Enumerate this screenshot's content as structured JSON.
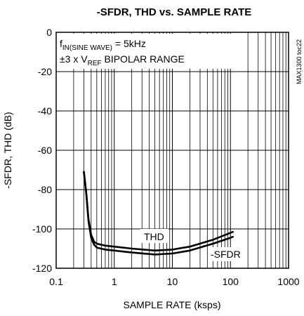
{
  "chart_data": {
    "type": "line",
    "title": "-SFDR, THD vs. SAMPLE RATE",
    "xlabel": "SAMPLE RATE (ksps)",
    "ylabel": "-SFDR, THD (dB)",
    "x_scale": "log",
    "xlim": [
      0.1,
      1000
    ],
    "ylim": [
      -120,
      0
    ],
    "x_ticks": [
      0.1,
      1,
      10,
      100,
      1000
    ],
    "x_tick_labels": [
      "0.1",
      "1",
      "10",
      "100",
      "1000"
    ],
    "y_ticks": [
      0,
      -20,
      -40,
      -60,
      -80,
      -100,
      -120
    ],
    "y_tick_labels": [
      "0",
      "-20",
      "-40",
      "-60",
      "-80",
      "-100",
      "-120"
    ],
    "grid": true,
    "annotation_lines": [
      {
        "main": "f",
        "subscript": "IN(SINE WAVE)",
        "rest": " = 5kHz"
      },
      {
        "main": "±3 x V",
        "subscript": "REF",
        "rest": " BIPOLAR RANGE"
      }
    ],
    "side_label": "MAX1300 toc22",
    "series": [
      {
        "name": "THD",
        "x": [
          0.3,
          0.33,
          0.36,
          0.4,
          0.45,
          0.5,
          0.7,
          1,
          2,
          5,
          10,
          20,
          50,
          100,
          110
        ],
        "y": [
          -71,
          -82,
          -95,
          -103,
          -106.5,
          -107.5,
          -108.5,
          -109,
          -110,
          -111,
          -110.5,
          -109,
          -105.5,
          -102,
          -101.5
        ]
      },
      {
        "name": "-SFDR",
        "x": [
          0.3,
          0.33,
          0.36,
          0.4,
          0.45,
          0.5,
          0.7,
          1,
          2,
          5,
          10,
          20,
          50,
          100,
          110
        ],
        "y": [
          -71,
          -82,
          -96,
          -104.5,
          -108,
          -109.5,
          -110.5,
          -111,
          -112,
          -113,
          -112.5,
          -111,
          -107.5,
          -104.5,
          -104
        ]
      }
    ]
  }
}
